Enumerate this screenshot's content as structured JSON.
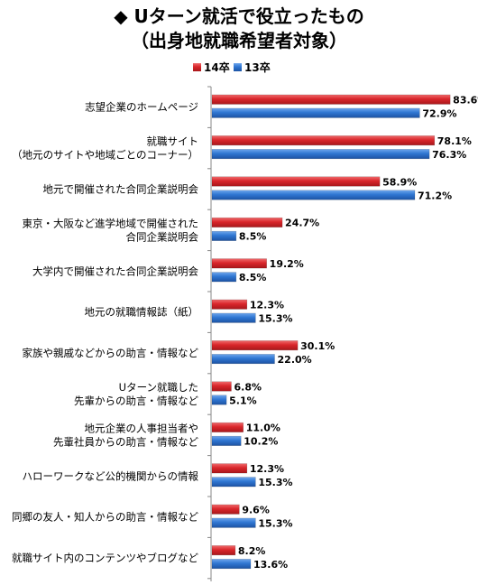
{
  "chart_data": {
    "type": "bar",
    "orientation": "horizontal",
    "title": "◆ Uターン就活で役立ったもの",
    "subtitle": "（出身地就職希望者対象）",
    "value_suffix": "%",
    "xlim": [
      0,
      100
    ],
    "legend_placement": "top-center",
    "grid": false,
    "categories": [
      [
        "志望企業のホームページ"
      ],
      [
        "就職サイト",
        "（地元のサイトや地域ごとのコーナー）"
      ],
      [
        "地元で開催された合同企業説明会"
      ],
      [
        "東京・大阪など進学地域で開催された",
        "合同企業説明会"
      ],
      [
        "大学内で開催された合同企業説明会"
      ],
      [
        "地元の就職情報誌（紙）"
      ],
      [
        "家族や親戚などからの助言・情報など"
      ],
      [
        "Uターン就職した",
        "先輩からの助言・情報など"
      ],
      [
        "地元企業の人事担当者や",
        "先輩社員からの助言・情報など"
      ],
      [
        "ハローワークなど公的機関からの情報"
      ],
      [
        "同郷の友人・知人からの助言・情報など"
      ],
      [
        "就職サイト内のコンテンツやブログなど"
      ]
    ],
    "series": [
      {
        "name": "14卒",
        "color": "#d9262b",
        "values": [
          83.6,
          78.1,
          58.9,
          24.7,
          19.2,
          12.3,
          30.1,
          6.8,
          11.0,
          12.3,
          9.6,
          8.2
        ]
      },
      {
        "name": "13卒",
        "color": "#2f76d2",
        "values": [
          72.9,
          76.3,
          71.2,
          8.5,
          8.5,
          15.3,
          22.0,
          5.1,
          10.2,
          15.3,
          15.3,
          13.6
        ]
      }
    ]
  }
}
